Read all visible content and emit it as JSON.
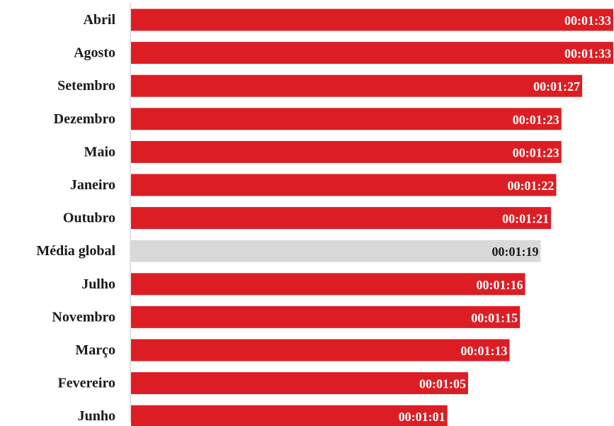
{
  "chart_data": {
    "type": "bar",
    "orientation": "horizontal",
    "categories": [
      "Abril",
      "Agosto",
      "Setembro",
      "Dezembro",
      "Maio",
      "Janeiro",
      "Outubro",
      "Média global",
      "Julho",
      "Novembro",
      "Março",
      "Fevereiro",
      "Junho"
    ],
    "values": [
      93,
      93,
      87,
      83,
      83,
      82,
      81,
      79,
      76,
      75,
      73,
      65,
      61
    ],
    "labels": [
      "00:01:33",
      "00:01:33",
      "00:01:27",
      "00:01:23",
      "00:01:23",
      "00:01:22",
      "00:01:21",
      "00:01:19",
      "00:01:16",
      "00:01:15",
      "00:01:13",
      "00:01:05",
      "00:01:01"
    ],
    "highlight": [
      "Média global"
    ],
    "unit": "seconds",
    "xlim": [
      0,
      93
    ],
    "grid": false,
    "colors": {
      "bar": "#dc1e24",
      "highlight_bar": "#d9d9d9",
      "label_on_bar": "#ffffff",
      "label_on_highlight": "#1a1a1a",
      "axis": "#d9d9d9"
    }
  }
}
